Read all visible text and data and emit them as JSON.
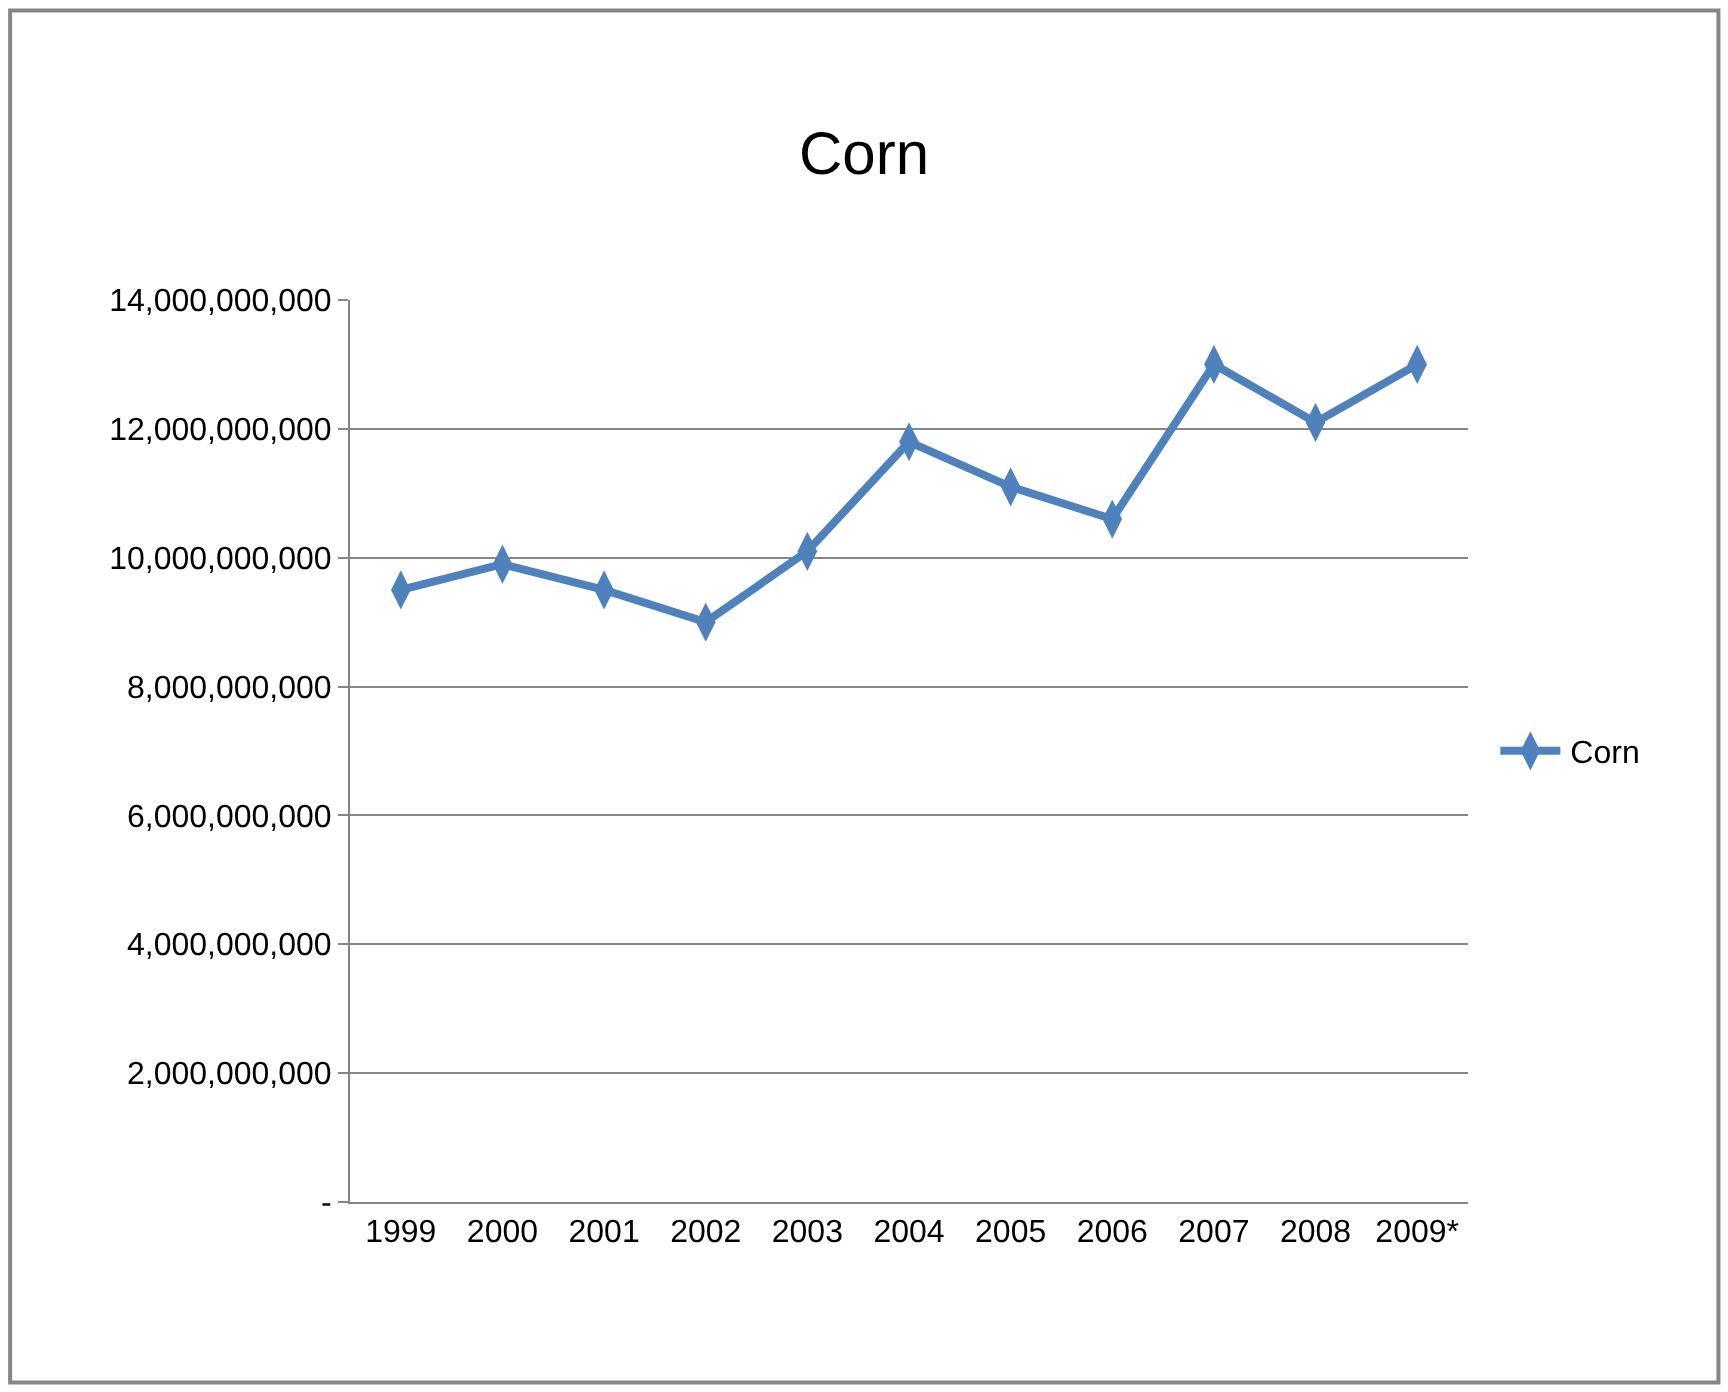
{
  "chart_data": {
    "type": "line",
    "title": "Corn",
    "categories": [
      "1999",
      "2000",
      "2001",
      "2002",
      "2003",
      "2004",
      "2005",
      "2006",
      "2007",
      "2008",
      "2009*"
    ],
    "series": [
      {
        "name": "Corn",
        "color": "#4f81bd",
        "values": [
          9500000000,
          9900000000,
          9500000000,
          9000000000,
          10100000000,
          11800000000,
          11100000000,
          10600000000,
          13000000000,
          12100000000,
          13000000000
        ]
      }
    ],
    "ylim": [
      0,
      14000000000
    ],
    "yticks": [
      {
        "value": 0,
        "label": "-"
      },
      {
        "value": 2000000000,
        "label": "2,000,000,000"
      },
      {
        "value": 4000000000,
        "label": "4,000,000,000"
      },
      {
        "value": 6000000000,
        "label": "6,000,000,000"
      },
      {
        "value": 8000000000,
        "label": "8,000,000,000"
      },
      {
        "value": 10000000000,
        "label": "10,000,000,000"
      },
      {
        "value": 12000000000,
        "label": "12,000,000,000"
      },
      {
        "value": 14000000000,
        "label": "14,000,000,000"
      }
    ],
    "grid": "y",
    "legend": "right",
    "marker": "diamond",
    "line_style": "solid"
  }
}
